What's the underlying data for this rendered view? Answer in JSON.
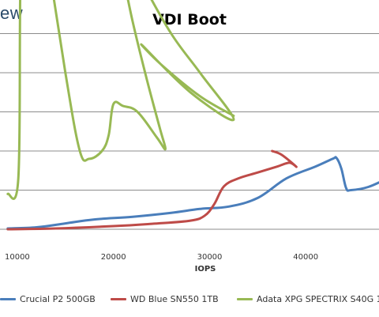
{
  "brand": "ew",
  "chart_data": {
    "type": "scatter",
    "title": "VDI Boot",
    "xlabel": "IOPS",
    "ylabel": "",
    "xlim": [
      9000,
      48500
    ],
    "ylim": [
      0,
      11.5
    ],
    "x_ticks": [
      10000,
      20000,
      30000,
      40000
    ],
    "y_gridlines": [
      1,
      2,
      3,
      4,
      5
    ],
    "grid": true,
    "legend_position": "bottom",
    "series": [
      {
        "name": "Crucial P2 500GB",
        "color": "#4a7ebb",
        "points": [
          [
            9000,
            0.02
          ],
          [
            12000,
            0.05
          ],
          [
            15000,
            0.15
          ],
          [
            18000,
            0.25
          ],
          [
            22000,
            0.32
          ],
          [
            26000,
            0.42
          ],
          [
            29000,
            0.52
          ],
          [
            32000,
            0.58
          ],
          [
            35000,
            0.8
          ],
          [
            38000,
            1.3
          ],
          [
            41000,
            1.6
          ],
          [
            42800,
            1.8
          ],
          [
            43200,
            1.82
          ],
          [
            43700,
            1.55
          ],
          [
            44200,
            1.05
          ],
          [
            44700,
            1.0
          ],
          [
            46500,
            1.08
          ],
          [
            48500,
            1.3
          ]
        ]
      },
      {
        "name": "WD Blue SN550 1TB",
        "color": "#be4b48",
        "points": [
          [
            9000,
            0.0
          ],
          [
            14000,
            0.02
          ],
          [
            20000,
            0.08
          ],
          [
            24000,
            0.14
          ],
          [
            28000,
            0.22
          ],
          [
            29500,
            0.35
          ],
          [
            30500,
            0.65
          ],
          [
            31500,
            1.1
          ],
          [
            33000,
            1.3
          ],
          [
            35000,
            1.45
          ],
          [
            37000,
            1.6
          ],
          [
            38300,
            1.7
          ],
          [
            39000,
            1.6
          ],
          [
            37500,
            1.9
          ],
          [
            36500,
            2.0
          ]
        ]
      },
      {
        "name": "Adata XPG SPECTRIX S40G 1",
        "color": "#98b954",
        "points": [
          [
            9000,
            0.9
          ],
          [
            10100,
            1.3
          ],
          [
            10300,
            6
          ],
          [
            10600,
            10.5
          ],
          [
            11500,
            9.8
          ],
          [
            13000,
            7.2
          ],
          [
            15000,
            4.0
          ],
          [
            16500,
            2.0
          ],
          [
            17500,
            1.8
          ],
          [
            18800,
            2.0
          ],
          [
            19500,
            2.4
          ],
          [
            20000,
            3.2
          ],
          [
            21000,
            3.15
          ],
          [
            22500,
            3.0
          ],
          [
            24500,
            2.35
          ],
          [
            25400,
            2.05
          ],
          [
            24800,
            2.6
          ],
          [
            23500,
            3.8
          ],
          [
            22000,
            5.3
          ],
          [
            20500,
            7.0
          ],
          [
            19500,
            7.5
          ],
          [
            21000,
            7.2
          ],
          [
            23000,
            6.3
          ],
          [
            26000,
            5.0
          ],
          [
            29000,
            4.0
          ],
          [
            32500,
            2.8
          ],
          [
            28000,
            3.5
          ],
          [
            23000,
            4.7
          ],
          [
            25000,
            4.2
          ],
          [
            29000,
            3.4
          ],
          [
            32500,
            2.9
          ]
        ]
      }
    ]
  }
}
